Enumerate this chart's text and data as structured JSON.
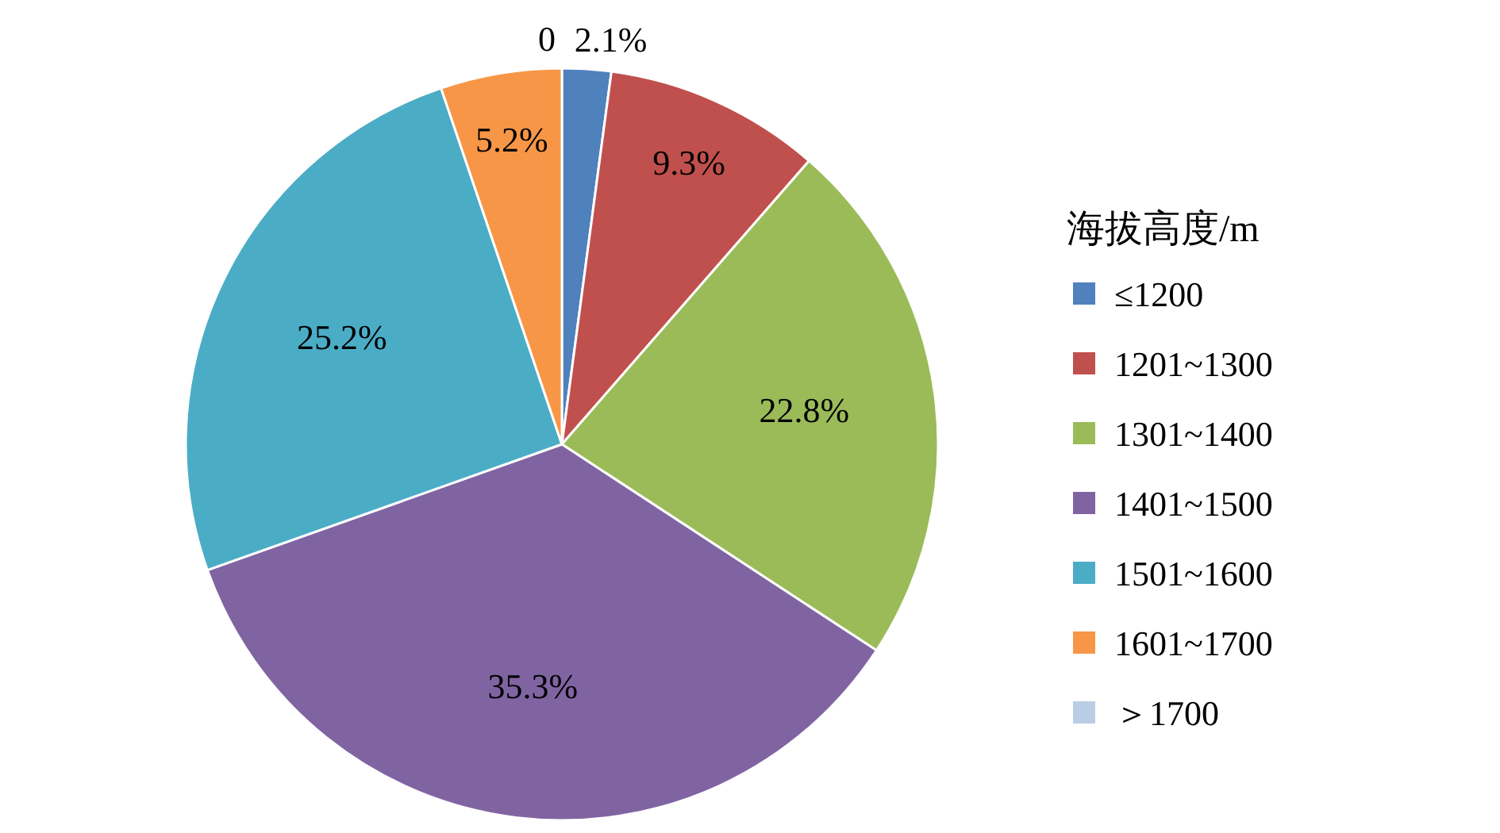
{
  "chart_data": {
    "type": "pie",
    "legend_title": "海拔高度/m",
    "legend": "right",
    "categories": [
      "≤1200",
      "1201~1300",
      "1301~1400",
      "1401~1500",
      "1501~1600",
      "1601~1700",
      "＞1700"
    ],
    "values": [
      2.1,
      9.3,
      22.8,
      35.3,
      25.2,
      5.2,
      0
    ],
    "colors": [
      "#4f81bd",
      "#c0504d",
      "#9bbb59",
      "#8064a2",
      "#4bacc6",
      "#f79646",
      "#b9cde5"
    ],
    "value_labels": [
      "2.1%",
      "9.3%",
      "22.8%",
      "35.3%",
      "25.2%",
      "5.2%",
      "0"
    ]
  }
}
